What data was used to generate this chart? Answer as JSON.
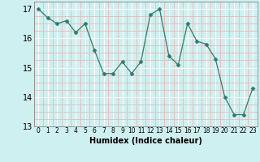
{
  "x": [
    0,
    1,
    2,
    3,
    4,
    5,
    6,
    7,
    8,
    9,
    10,
    11,
    12,
    13,
    14,
    15,
    16,
    17,
    18,
    19,
    20,
    21,
    22,
    23
  ],
  "y": [
    17.0,
    16.7,
    16.5,
    16.6,
    16.2,
    16.5,
    15.6,
    14.8,
    14.8,
    15.2,
    14.8,
    15.2,
    16.8,
    17.0,
    15.4,
    15.1,
    16.5,
    15.9,
    15.8,
    15.3,
    14.0,
    13.4,
    13.4,
    14.3
  ],
  "title": "",
  "xlabel": "Humidex (Indice chaleur)",
  "ylabel": "",
  "xlim": [
    -0.5,
    23.5
  ],
  "ylim": [
    13.0,
    17.25
  ],
  "yticks": [
    13,
    14,
    15,
    16,
    17
  ],
  "xtick_labels": [
    "0",
    "1",
    "2",
    "3",
    "4",
    "5",
    "6",
    "7",
    "8",
    "9",
    "10",
    "11",
    "12",
    "13",
    "14",
    "15",
    "16",
    "17",
    "18",
    "19",
    "20",
    "21",
    "22",
    "23"
  ],
  "line_color": "#2d7d6e",
  "marker": "D",
  "marker_size": 2.5,
  "bg_color": "#cff0f0",
  "grid_color_major": "#ffffff",
  "grid_color_minor": "#e8b8b8"
}
